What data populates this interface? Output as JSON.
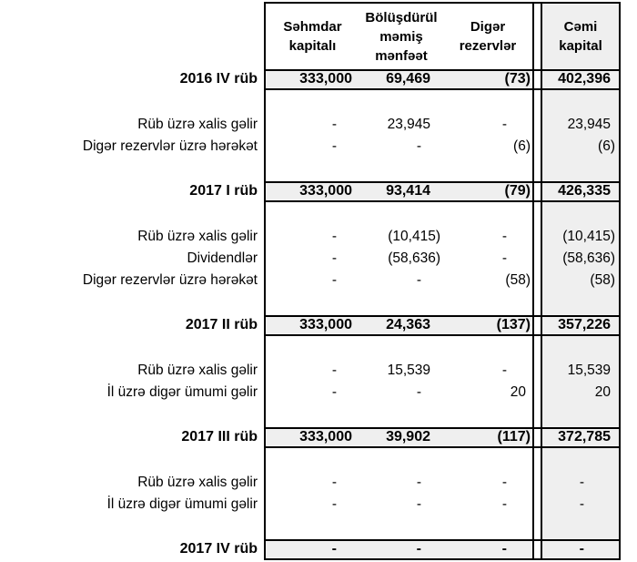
{
  "table": {
    "header": {
      "col1": "Səhmdar\nkapitalı",
      "col2": "Bölüşdürül\nməmiş\nmənfəət",
      "col3": "Digər\nrezervlər",
      "col4": "Cəmi\nkapital"
    },
    "rows": [
      {
        "type": "quarter",
        "label": "2016 IV rüb",
        "values": [
          "333,000",
          "69,469",
          "(73)",
          "402,396"
        ]
      },
      {
        "type": "spacer"
      },
      {
        "type": "item",
        "label": "Rüb üzrə xalis gəlir",
        "values": [
          "-",
          "23,945",
          "-",
          "23,945"
        ]
      },
      {
        "type": "item",
        "label": "Digər rezervlər üzrə hərəkət",
        "values": [
          "-",
          "-",
          "(6)",
          "(6)"
        ]
      },
      {
        "type": "spacer"
      },
      {
        "type": "quarter",
        "label": "2017 I rüb",
        "values": [
          "333,000",
          "93,414",
          "(79)",
          "426,335"
        ]
      },
      {
        "type": "spacer"
      },
      {
        "type": "item",
        "label": "Rüb üzrə xalis gəlir",
        "values": [
          "-",
          "(10,415)",
          "-",
          "(10,415)"
        ]
      },
      {
        "type": "item",
        "label": "Dividendlər",
        "values": [
          "-",
          "(58,636)",
          "-",
          "(58,636)"
        ]
      },
      {
        "type": "item",
        "label": "Digər rezervlər üzrə hərəkət",
        "values": [
          "-",
          "-",
          "(58)",
          "(58)"
        ]
      },
      {
        "type": "spacer"
      },
      {
        "type": "quarter",
        "label": "2017 II rüb",
        "values": [
          "333,000",
          "24,363",
          "(137)",
          "357,226"
        ]
      },
      {
        "type": "spacer"
      },
      {
        "type": "item",
        "label": "Rüb üzrə xalis gəlir",
        "values": [
          "-",
          "15,539",
          "-",
          "15,539"
        ]
      },
      {
        "type": "item",
        "label": "İl üzrə digər ümumi gəlir",
        "values": [
          "-",
          "-",
          "20",
          "20"
        ]
      },
      {
        "type": "spacer"
      },
      {
        "type": "quarter",
        "label": "2017 III rüb",
        "values": [
          "333,000",
          "39,902",
          "(117)",
          "372,785"
        ]
      },
      {
        "type": "spacer"
      },
      {
        "type": "item",
        "label": "Rüb üzrə xalis gəlir",
        "values": [
          "-",
          "-",
          "-",
          "-"
        ]
      },
      {
        "type": "item",
        "label": "İl üzrə digər ümumi gəlir",
        "values": [
          "-",
          "-",
          "-",
          "-"
        ]
      },
      {
        "type": "spacer"
      },
      {
        "type": "quarter",
        "label": "2017 IV rüb",
        "values": [
          "-",
          "-",
          "-",
          "-"
        ]
      }
    ]
  },
  "colors": {
    "fill_gray": "#efefef",
    "border": "#000000",
    "background": "#ffffff"
  }
}
